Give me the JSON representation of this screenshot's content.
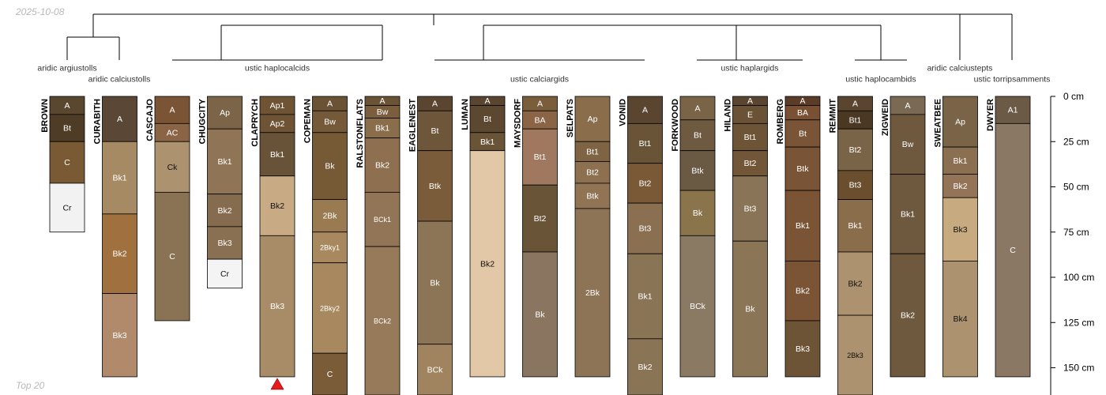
{
  "header": {
    "date": "2025-10-08"
  },
  "footer": {
    "label": "Top 20"
  },
  "colors": {
    "line": "#000000",
    "group_text": "#333333",
    "depth_text": "#000000",
    "marker": "#e8191b"
  },
  "depth_axis": {
    "unit": "cm",
    "max_depth": 165,
    "ticks": [
      {
        "depth": 0,
        "label": "0 cm"
      },
      {
        "depth": 25,
        "label": "25 cm"
      },
      {
        "depth": 50,
        "label": "50 cm"
      },
      {
        "depth": 75,
        "label": "75 cm"
      },
      {
        "depth": 100,
        "label": "100 cm"
      },
      {
        "depth": 125,
        "label": "125 cm"
      },
      {
        "depth": 150,
        "label": "150 cm"
      }
    ]
  },
  "groups": [
    {
      "id": "aridic argiustolls",
      "label": "aridic argiustolls",
      "members": [
        0
      ]
    },
    {
      "id": "aridic calciustolls",
      "label": "aridic calciustolls",
      "members": [
        1
      ]
    },
    {
      "id": "ustic haplocalcids",
      "label": "ustic haplocalcids",
      "members": [
        2,
        3,
        4,
        5,
        6
      ]
    },
    {
      "id": "ustic calciargids",
      "label": "ustic calciargids",
      "members": [
        7,
        8,
        9,
        10,
        11
      ]
    },
    {
      "id": "ustic haplargids",
      "label": "ustic haplargids",
      "members": [
        12,
        13,
        14
      ]
    },
    {
      "id": "ustic haplocambids",
      "label": "ustic haplocambids",
      "members": [
        15,
        16
      ]
    },
    {
      "id": "aridic calciustepts",
      "label": "aridic calciustepts",
      "members": [
        17
      ]
    },
    {
      "id": "ustic torripsamments",
      "label": "ustic torripsamments",
      "members": [
        18
      ]
    }
  ],
  "profiles": [
    {
      "name": "BROWN",
      "horizons": [
        {
          "name": "A",
          "top": 0,
          "bottom": 10,
          "color": "#5a4730"
        },
        {
          "name": "Bt",
          "top": 10,
          "bottom": 25,
          "color": "#4f3c26"
        },
        {
          "name": "C",
          "top": 25,
          "bottom": 48,
          "color": "#7a5a35"
        },
        {
          "name": "Cr",
          "top": 48,
          "bottom": 75,
          "color": "#f2f2f2"
        }
      ]
    },
    {
      "name": "CURABITH",
      "horizons": [
        {
          "name": "A",
          "top": 0,
          "bottom": 25,
          "color": "#5a4736"
        },
        {
          "name": "Bk1",
          "top": 25,
          "bottom": 65,
          "color": "#a58a64"
        },
        {
          "name": "Bk2",
          "top": 65,
          "bottom": 109,
          "color": "#a0703f"
        },
        {
          "name": "Bk3",
          "top": 109,
          "bottom": 155,
          "color": "#b08a6a"
        }
      ]
    },
    {
      "name": "CASCAJO",
      "horizons": [
        {
          "name": "A",
          "top": 0,
          "bottom": 15,
          "color": "#7a5434"
        },
        {
          "name": "AC",
          "top": 15,
          "bottom": 25,
          "color": "#8a6445"
        },
        {
          "name": "Ck",
          "top": 25,
          "bottom": 53,
          "color": "#ad9270"
        },
        {
          "name": "C",
          "top": 53,
          "bottom": 124,
          "color": "#8a7254"
        }
      ]
    },
    {
      "name": "CHUGCITY",
      "horizons": [
        {
          "name": "Ap",
          "top": 0,
          "bottom": 18,
          "color": "#7c6448"
        },
        {
          "name": "Bk1",
          "top": 18,
          "bottom": 54,
          "color": "#8f7556"
        },
        {
          "name": "Bk2",
          "top": 54,
          "bottom": 72,
          "color": "#866c4e"
        },
        {
          "name": "Bk3",
          "top": 72,
          "bottom": 90,
          "color": "#8a7052"
        },
        {
          "name": "Cr",
          "top": 90,
          "bottom": 106,
          "color": "#f4f4f4"
        }
      ]
    },
    {
      "name": "CLAPRYCH",
      "marker": true,
      "horizons": [
        {
          "name": "Ap1",
          "top": 0,
          "bottom": 10,
          "color": "#6e5434"
        },
        {
          "name": "Ap2",
          "top": 10,
          "bottom": 20,
          "color": "#6e5434"
        },
        {
          "name": "Bk1",
          "top": 20,
          "bottom": 44,
          "color": "#685238"
        },
        {
          "name": "Bk2",
          "top": 44,
          "bottom": 77,
          "color": "#c8aa84"
        },
        {
          "name": "Bk3",
          "top": 77,
          "bottom": 155,
          "color": "#a88c68"
        }
      ]
    },
    {
      "name": "COPEMAN",
      "horizons": [
        {
          "name": "A",
          "top": 0,
          "bottom": 8,
          "color": "#6a5234"
        },
        {
          "name": "Bw",
          "top": 8,
          "bottom": 20,
          "color": "#745a38"
        },
        {
          "name": "Bk",
          "top": 20,
          "bottom": 57,
          "color": "#765a36"
        },
        {
          "name": "2Bk",
          "top": 57,
          "bottom": 75,
          "color": "#9a7a50"
        },
        {
          "name": "2Bky1",
          "top": 75,
          "bottom": 92,
          "color": "#a8885e"
        },
        {
          "name": "2Bky2",
          "top": 92,
          "bottom": 142,
          "color": "#a8885e"
        },
        {
          "name": "C",
          "top": 142,
          "bottom": 170,
          "color": "#7a5c38"
        }
      ]
    },
    {
      "name": "RALSTONFLATS",
      "horizons": [
        {
          "name": "A",
          "top": 0,
          "bottom": 5,
          "color": "#6a5234"
        },
        {
          "name": "Bw",
          "top": 5,
          "bottom": 12,
          "color": "#7a5e3e"
        },
        {
          "name": "Bk1",
          "top": 12,
          "bottom": 23,
          "color": "#8a6e4c"
        },
        {
          "name": "Bk2",
          "top": 23,
          "bottom": 53,
          "color": "#8e7050"
        },
        {
          "name": "BCk1",
          "top": 53,
          "bottom": 83,
          "color": "#927456"
        },
        {
          "name": "BCk2",
          "top": 83,
          "bottom": 170,
          "color": "#977a5a"
        }
      ]
    },
    {
      "name": "EAGLENEST",
      "horizons": [
        {
          "name": "A",
          "top": 0,
          "bottom": 8,
          "color": "#5a4630"
        },
        {
          "name": "Bt",
          "top": 8,
          "bottom": 30,
          "color": "#6e563a"
        },
        {
          "name": "Btk",
          "top": 30,
          "bottom": 69,
          "color": "#7a5c3a"
        },
        {
          "name": "Bk",
          "top": 69,
          "bottom": 137,
          "color": "#8c7556"
        },
        {
          "name": "BCk",
          "top": 137,
          "bottom": 170,
          "color": "#a08460"
        }
      ]
    },
    {
      "name": "LUMAN",
      "horizons": [
        {
          "name": "A",
          "top": 0,
          "bottom": 5,
          "color": "#5a4630"
        },
        {
          "name": "Bt",
          "top": 5,
          "bottom": 20,
          "color": "#5c4830"
        },
        {
          "name": "Bk1",
          "top": 20,
          "bottom": 30,
          "color": "#6a5438"
        },
        {
          "name": "Bk2",
          "top": 30,
          "bottom": 155,
          "color": "#e2c8a6"
        }
      ]
    },
    {
      "name": "MAYSDORF",
      "horizons": [
        {
          "name": "A",
          "top": 0,
          "bottom": 8,
          "color": "#7a5e3c"
        },
        {
          "name": "BA",
          "top": 8,
          "bottom": 18,
          "color": "#8a6444"
        },
        {
          "name": "Bt1",
          "top": 18,
          "bottom": 49,
          "color": "#a07860"
        },
        {
          "name": "Bt2",
          "top": 49,
          "bottom": 86,
          "color": "#6a5438"
        },
        {
          "name": "Bk",
          "top": 86,
          "bottom": 155,
          "color": "#8a7660"
        }
      ]
    },
    {
      "name": "SELPATS",
      "horizons": [
        {
          "name": "Ap",
          "top": 0,
          "bottom": 25,
          "color": "#8a6e4c"
        },
        {
          "name": "Bt1",
          "top": 25,
          "bottom": 36,
          "color": "#7e6444"
        },
        {
          "name": "Bt2",
          "top": 36,
          "bottom": 48,
          "color": "#8c7050"
        },
        {
          "name": "Btk",
          "top": 48,
          "bottom": 62,
          "color": "#907454"
        },
        {
          "name": "2Bk",
          "top": 62,
          "bottom": 155,
          "color": "#8e7456"
        }
      ]
    },
    {
      "name": "VONID",
      "horizons": [
        {
          "name": "A",
          "top": 0,
          "bottom": 15,
          "color": "#5a4630"
        },
        {
          "name": "Bt1",
          "top": 15,
          "bottom": 37,
          "color": "#6a5438"
        },
        {
          "name": "Bt2",
          "top": 37,
          "bottom": 59,
          "color": "#7a5a36"
        },
        {
          "name": "Bt3",
          "top": 59,
          "bottom": 87,
          "color": "#8a7050"
        },
        {
          "name": "Bk1",
          "top": 87,
          "bottom": 134,
          "color": "#8a7456"
        },
        {
          "name": "Bk2",
          "top": 134,
          "bottom": 170,
          "color": "#8a7456"
        }
      ]
    },
    {
      "name": "FORKWOOD",
      "horizons": [
        {
          "name": "A",
          "top": 0,
          "bottom": 13,
          "color": "#7a6448"
        },
        {
          "name": "Bt",
          "top": 13,
          "bottom": 30,
          "color": "#6e5a40"
        },
        {
          "name": "Btk",
          "top": 30,
          "bottom": 52,
          "color": "#6a5a44"
        },
        {
          "name": "Bk",
          "top": 52,
          "bottom": 77,
          "color": "#8a744c"
        },
        {
          "name": "BCk",
          "top": 77,
          "bottom": 155,
          "color": "#8a7a64"
        }
      ]
    },
    {
      "name": "HILAND",
      "horizons": [
        {
          "name": "A",
          "top": 0,
          "bottom": 5,
          "color": "#5a4630"
        },
        {
          "name": "E",
          "top": 5,
          "bottom": 15,
          "color": "#6a5236"
        },
        {
          "name": "Bt1",
          "top": 15,
          "bottom": 30,
          "color": "#6e5436"
        },
        {
          "name": "Bt2",
          "top": 30,
          "bottom": 44,
          "color": "#725638"
        },
        {
          "name": "Bt3",
          "top": 44,
          "bottom": 80,
          "color": "#8a7458"
        },
        {
          "name": "Bk",
          "top": 80,
          "bottom": 155,
          "color": "#8a7656"
        }
      ]
    },
    {
      "name": "ROMBERG",
      "horizons": [
        {
          "name": "A",
          "top": 0,
          "bottom": 5,
          "color": "#5a3c28"
        },
        {
          "name": "BA",
          "top": 5,
          "bottom": 13,
          "color": "#7a5034"
        },
        {
          "name": "Bt",
          "top": 13,
          "bottom": 28,
          "color": "#7a5436"
        },
        {
          "name": "Btk",
          "top": 28,
          "bottom": 52,
          "color": "#7a5436"
        },
        {
          "name": "Bk1",
          "top": 52,
          "bottom": 91,
          "color": "#7a5434"
        },
        {
          "name": "Bk2",
          "top": 91,
          "bottom": 124,
          "color": "#7a5434"
        },
        {
          "name": "Bk3",
          "top": 124,
          "bottom": 155,
          "color": "#6e5436"
        }
      ]
    },
    {
      "name": "REMMIT",
      "horizons": [
        {
          "name": "A",
          "top": 0,
          "bottom": 8,
          "color": "#5a4630"
        },
        {
          "name": "Bt1",
          "top": 8,
          "bottom": 18,
          "color": "#4a3822"
        },
        {
          "name": "Bt2",
          "top": 18,
          "bottom": 41,
          "color": "#7a6448"
        },
        {
          "name": "Bt3",
          "top": 41,
          "bottom": 57,
          "color": "#6a4e2e"
        },
        {
          "name": "Bk1",
          "top": 57,
          "bottom": 86,
          "color": "#8a6e4c"
        },
        {
          "name": "Bk2",
          "top": 86,
          "bottom": 121,
          "color": "#ad9270"
        },
        {
          "name": "2Bk3",
          "top": 121,
          "bottom": 170,
          "color": "#ad9270"
        }
      ]
    },
    {
      "name": "ZIGWEID",
      "horizons": [
        {
          "name": "A",
          "top": 0,
          "bottom": 10,
          "color": "#7a6a54"
        },
        {
          "name": "Bw",
          "top": 10,
          "bottom": 43,
          "color": "#6e583e"
        },
        {
          "name": "Bk1",
          "top": 43,
          "bottom": 87,
          "color": "#6e583e"
        },
        {
          "name": "Bk2",
          "top": 87,
          "bottom": 155,
          "color": "#6e583e"
        }
      ]
    },
    {
      "name": "SWEATBEE",
      "horizons": [
        {
          "name": "Ap",
          "top": 0,
          "bottom": 28,
          "color": "#7a6448"
        },
        {
          "name": "Bk1",
          "top": 28,
          "bottom": 43,
          "color": "#8a7050"
        },
        {
          "name": "Bk2",
          "top": 43,
          "bottom": 56,
          "color": "#947456"
        },
        {
          "name": "Bk3",
          "top": 56,
          "bottom": 91,
          "color": "#c8aa80"
        },
        {
          "name": "Bk4",
          "top": 91,
          "bottom": 155,
          "color": "#ad9270"
        }
      ]
    },
    {
      "name": "DWYER",
      "horizons": [
        {
          "name": "A1",
          "top": 0,
          "bottom": 15,
          "color": "#6a5a46"
        },
        {
          "name": "C",
          "top": 15,
          "bottom": 155,
          "color": "#8a7864"
        }
      ]
    }
  ],
  "dendrogram": {
    "root": {
      "children": [
        "left",
        "right"
      ]
    },
    "left": {
      "children": [
        "grp-left-a",
        "ustic haplocalcids"
      ]
    },
    "grp-left-a": {
      "children": [
        "aridic argiustolls",
        "aridic calciustolls"
      ]
    },
    "right": {
      "children": [
        "grp-mid",
        "grp-right"
      ]
    },
    "grp-mid": {
      "children": [
        "ustic calciargids",
        "ustic haplargids"
      ]
    },
    "grp-right": {
      "children": [
        "ustic haplocambids",
        "grp-far"
      ]
    },
    "grp-far": {
      "children": [
        "aridic calciustepts",
        "ustic torripsamments"
      ]
    }
  }
}
